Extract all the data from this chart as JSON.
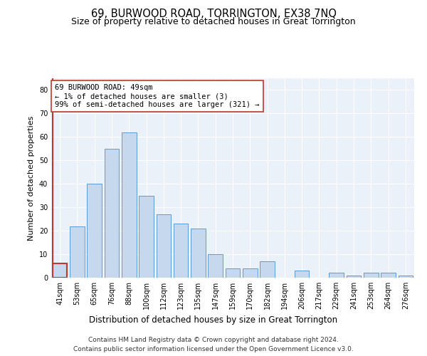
{
  "title": "69, BURWOOD ROAD, TORRINGTON, EX38 7NQ",
  "subtitle": "Size of property relative to detached houses in Great Torrington",
  "xlabel": "Distribution of detached houses by size in Great Torrington",
  "ylabel": "Number of detached properties",
  "categories": [
    "41sqm",
    "53sqm",
    "65sqm",
    "76sqm",
    "88sqm",
    "100sqm",
    "112sqm",
    "123sqm",
    "135sqm",
    "147sqm",
    "159sqm",
    "170sqm",
    "182sqm",
    "194sqm",
    "206sqm",
    "217sqm",
    "229sqm",
    "241sqm",
    "253sqm",
    "264sqm",
    "276sqm"
  ],
  "values": [
    6,
    22,
    40,
    55,
    62,
    35,
    27,
    23,
    21,
    10,
    4,
    4,
    7,
    0,
    3,
    0,
    2,
    1,
    2,
    2,
    1
  ],
  "bar_color": "#c5d8ed",
  "bar_edge_color": "#5b9bd5",
  "highlight_index": 0,
  "highlight_edge_color": "#c0392b",
  "annotation_text": "69 BURWOOD ROAD: 49sqm\n← 1% of detached houses are smaller (3)\n99% of semi-detached houses are larger (321) →",
  "annotation_box_color": "white",
  "annotation_box_edge_color": "#c0392b",
  "marker_line_color": "#c0392b",
  "ylim": [
    0,
    85
  ],
  "yticks": [
    0,
    10,
    20,
    30,
    40,
    50,
    60,
    70,
    80
  ],
  "footer_line1": "Contains HM Land Registry data © Crown copyright and database right 2024.",
  "footer_line2": "Contains public sector information licensed under the Open Government Licence v3.0.",
  "bg_color": "#eaf1f8",
  "fig_bg_color": "#ffffff",
  "title_fontsize": 10.5,
  "subtitle_fontsize": 9,
  "xlabel_fontsize": 8.5,
  "ylabel_fontsize": 8,
  "tick_fontsize": 7,
  "annotation_fontsize": 7.5,
  "footer_fontsize": 6.5
}
